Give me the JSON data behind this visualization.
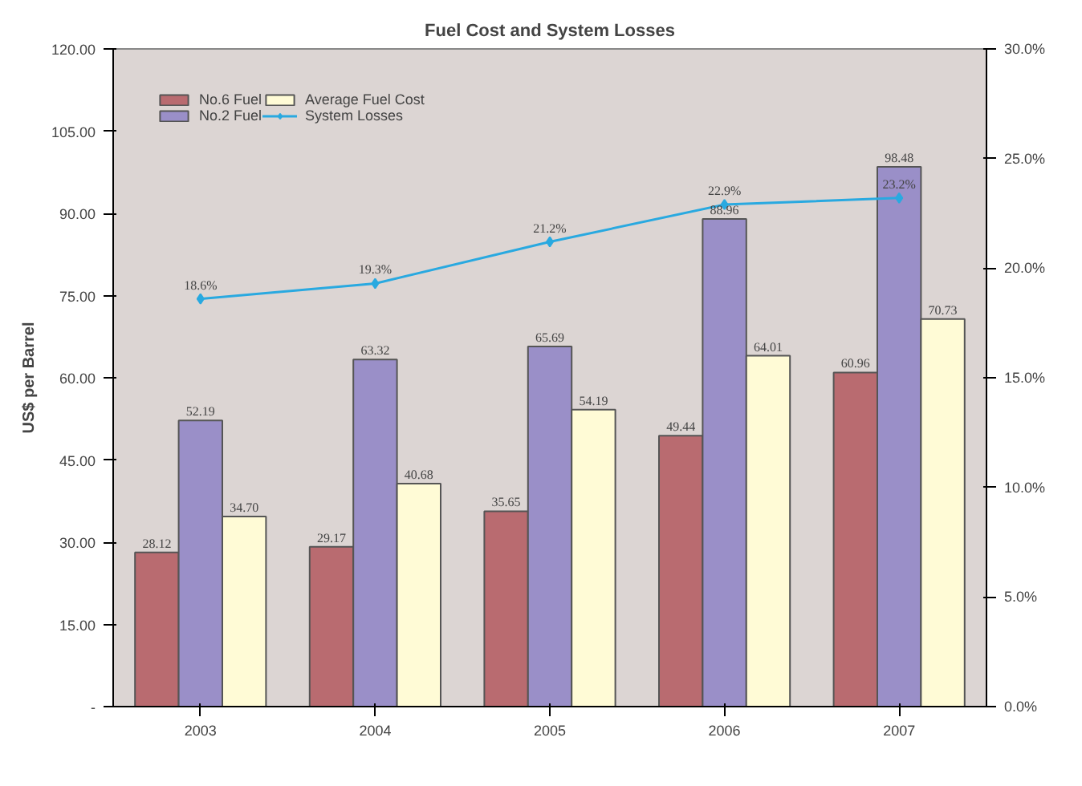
{
  "chart_data": {
    "type": "bar",
    "title": "Fuel Cost and System Losses",
    "ylabel": "US$ per Barrel",
    "categories": [
      "2003",
      "2004",
      "2005",
      "2006",
      "2007"
    ],
    "ylim": [
      0,
      120
    ],
    "yticks": [
      {
        "value": 0,
        "label": "-"
      },
      {
        "value": 15,
        "label": "15.00"
      },
      {
        "value": 30,
        "label": "30.00"
      },
      {
        "value": 45,
        "label": "45.00"
      },
      {
        "value": 60,
        "label": "60.00"
      },
      {
        "value": 75,
        "label": "75.00"
      },
      {
        "value": 90,
        "label": "90.00"
      },
      {
        "value": 105,
        "label": "105.00"
      },
      {
        "value": 120,
        "label": "120.00"
      }
    ],
    "y2lim": [
      0,
      30
    ],
    "y2ticks": [
      {
        "value": 0,
        "label": "0.0%"
      },
      {
        "value": 5,
        "label": "5.0%"
      },
      {
        "value": 10,
        "label": "10.0%"
      },
      {
        "value": 15,
        "label": "15.0%"
      },
      {
        "value": 20,
        "label": "20.0%"
      },
      {
        "value": 25,
        "label": "25.0%"
      },
      {
        "value": 30,
        "label": "30.0%"
      }
    ],
    "series": [
      {
        "name": "No.6 Fuel",
        "color": "#b96b70",
        "values": [
          28.12,
          29.17,
          35.65,
          49.44,
          60.96
        ],
        "value_labels": [
          "28.12",
          "29.17",
          "35.65",
          "49.44",
          "60.96"
        ]
      },
      {
        "name": "No.2 Fuel",
        "color": "#9a8fc8",
        "values": [
          52.19,
          63.32,
          65.69,
          88.96,
          98.48
        ],
        "value_labels": [
          "52.19",
          "63.32",
          "65.69",
          "88.96",
          "98.48"
        ]
      },
      {
        "name": "Average Fuel Cost",
        "color": "#fffbd6",
        "values": [
          34.7,
          40.68,
          54.19,
          64.01,
          70.73
        ],
        "value_labels": [
          "34.70",
          "40.68",
          "54.19",
          "64.01",
          "70.73"
        ]
      },
      {
        "name": "System Losses",
        "type": "line",
        "axis": "y2",
        "color": "#29a9e0",
        "marker": "diamond",
        "line_style": "solid",
        "values": [
          18.6,
          19.3,
          21.2,
          22.9,
          23.2
        ],
        "value_labels": [
          "18.6%",
          "19.3%",
          "21.2%",
          "22.9%",
          "23.2%"
        ]
      }
    ],
    "grid": false,
    "legend": "top left"
  }
}
